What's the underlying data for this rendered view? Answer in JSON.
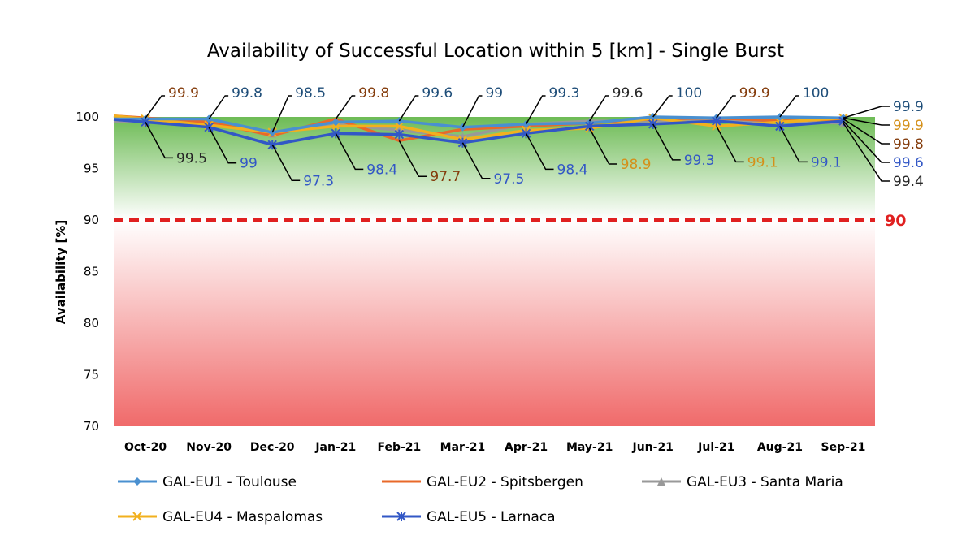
{
  "chart_data": {
    "type": "line",
    "title": "Availability of Successful Location within 5 [km] - Single Burst",
    "ylabel": "Availability  [%]",
    "xlabel": "",
    "ylim": [
      70,
      100
    ],
    "yticks": [
      70,
      75,
      80,
      85,
      90,
      95,
      100
    ],
    "categories": [
      "Oct-20",
      "Nov-20",
      "Dec-20",
      "Jan-21",
      "Feb-21",
      "Mar-21",
      "Apr-21",
      "May-21",
      "Jun-21",
      "Jul-21",
      "Aug-21",
      "Sep-21"
    ],
    "threshold": {
      "value": 90,
      "label": "90",
      "color": "#e02020",
      "style": "dashed"
    },
    "background": {
      "top_color": "#6dbb55",
      "mid_color": "#ffffff",
      "bottom_color": "#f06a6a"
    },
    "grid": false,
    "legend_position": "bottom",
    "series": [
      {
        "name": "GAL-EU1 - Toulouse",
        "color": "#4a90d0",
        "marker": "diamond",
        "label_color": "#1f4e79",
        "values": [
          99.8,
          99.8,
          98.5,
          99.5,
          99.6,
          99.0,
          99.3,
          99.4,
          100,
          99.9,
          100,
          99.9
        ]
      },
      {
        "name": "GAL-EU2 - Spitsbergen",
        "color": "#e8692a",
        "marker": "none",
        "label_color": "#843c0c",
        "values": [
          99.9,
          99.5,
          98.2,
          99.8,
          97.7,
          98.8,
          99.1,
          99.4,
          99.8,
          99.9,
          99.6,
          99.8
        ]
      },
      {
        "name": "GAL-EU3 - Santa Maria",
        "color": "#999999",
        "marker": "triangle",
        "label_color": "#262626",
        "values": [
          99.5,
          99.3,
          98.4,
          99.3,
          98.7,
          98.1,
          99.3,
          99.6,
          99.6,
          99.7,
          99.5,
          99.4
        ]
      },
      {
        "name": "GAL-EU4 - Maspalomas",
        "color": "#f2b01e",
        "marker": "x",
        "label_color": "#d4901a",
        "values": [
          99.8,
          99.2,
          98.5,
          99.1,
          99.1,
          97.8,
          98.7,
          98.9,
          99.9,
          99.1,
          99.5,
          99.9
        ]
      },
      {
        "name": "GAL-EU5 - Larnaca",
        "color": "#3257c6",
        "marker": "asterisk",
        "label_color": "#3257c6",
        "values": [
          99.5,
          99.0,
          97.3,
          98.4,
          98.3,
          97.5,
          98.4,
          99.1,
          99.3,
          99.6,
          99.1,
          99.6
        ]
      }
    ],
    "data_labels": [
      {
        "month": 0,
        "series": 1,
        "text": "99.9",
        "side": "above"
      },
      {
        "month": 0,
        "series": 2,
        "text": "99.5",
        "side": "below"
      },
      {
        "month": 1,
        "series": 0,
        "text": "99.8",
        "side": "above"
      },
      {
        "month": 1,
        "series": 4,
        "text": "99",
        "side": "below"
      },
      {
        "month": 2,
        "series": 0,
        "text": "98.5",
        "side": "above"
      },
      {
        "month": 2,
        "series": 4,
        "text": "97.3",
        "side": "below"
      },
      {
        "month": 3,
        "series": 1,
        "text": "99.8",
        "side": "above"
      },
      {
        "month": 3,
        "series": 4,
        "text": "98.4",
        "side": "below"
      },
      {
        "month": 4,
        "series": 0,
        "text": "99.6",
        "side": "above"
      },
      {
        "month": 4,
        "series": 1,
        "text": "97.7",
        "side": "below"
      },
      {
        "month": 5,
        "series": 0,
        "text": "99",
        "side": "above"
      },
      {
        "month": 5,
        "series": 4,
        "text": "97.5",
        "side": "below"
      },
      {
        "month": 6,
        "series": 0,
        "text": "99.3",
        "side": "above"
      },
      {
        "month": 6,
        "series": 4,
        "text": "98.4",
        "side": "below"
      },
      {
        "month": 7,
        "series": 2,
        "text": "99.6",
        "side": "above"
      },
      {
        "month": 7,
        "series": 3,
        "text": "98.9",
        "side": "below"
      },
      {
        "month": 8,
        "series": 0,
        "text": "100",
        "side": "above"
      },
      {
        "month": 8,
        "series": 4,
        "text": "99.3",
        "side": "below"
      },
      {
        "month": 9,
        "series": 1,
        "text": "99.9",
        "side": "above"
      },
      {
        "month": 9,
        "series": 3,
        "text": "99.1",
        "side": "below"
      },
      {
        "month": 10,
        "series": 0,
        "text": "100",
        "side": "above"
      },
      {
        "month": 10,
        "series": 4,
        "text": "99.1",
        "side": "below"
      },
      {
        "month": 11,
        "series": 0,
        "text": "99.9",
        "side": "right"
      },
      {
        "month": 11,
        "series": 3,
        "text": "99.9",
        "side": "right"
      },
      {
        "month": 11,
        "series": 1,
        "text": "99.8",
        "side": "right"
      },
      {
        "month": 11,
        "series": 4,
        "text": "99.6",
        "side": "right"
      },
      {
        "month": 11,
        "series": 2,
        "text": "99.4",
        "side": "right"
      }
    ]
  }
}
